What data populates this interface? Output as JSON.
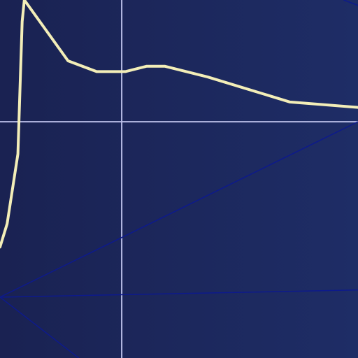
{
  "colors": {
    "bg_left": "#1a2252",
    "bg_right": "#1e2d66",
    "grid": "#b9bde6",
    "curve": "#f3eeb8",
    "guide": "#0d1a8c"
  },
  "chart_data": {
    "type": "line",
    "title": "",
    "xlabel": "",
    "ylabel": "",
    "grid": true,
    "xlim": [
      0,
      1
    ],
    "ylim": [
      0,
      1
    ],
    "grid_lines": {
      "x": [
        0.34
      ],
      "y": [
        0.66
      ]
    },
    "series": [
      {
        "name": "curve",
        "x": [
          0.0,
          0.02,
          0.05,
          0.062,
          0.068,
          0.19,
          0.27,
          0.35,
          0.41,
          0.46,
          0.58,
          0.81,
          1.0
        ],
        "y": [
          0.31,
          0.375,
          0.57,
          0.94,
          1.0,
          0.83,
          0.8,
          0.8,
          0.815,
          0.815,
          0.785,
          0.715,
          0.7
        ]
      }
    ],
    "guides": [
      {
        "name": "guide-rising",
        "x": [
          0.0,
          1.0
        ],
        "y": [
          0.17,
          0.66
        ]
      },
      {
        "name": "guide-flat",
        "x": [
          0.0,
          1.0
        ],
        "y": [
          0.17,
          0.19
        ]
      },
      {
        "name": "guide-falling",
        "x": [
          0.0,
          0.22
        ],
        "y": [
          0.17,
          0.0
        ]
      },
      {
        "name": "guide-corner",
        "x": [
          0.96,
          1.0
        ],
        "y": [
          1.0,
          0.985
        ]
      }
    ]
  }
}
